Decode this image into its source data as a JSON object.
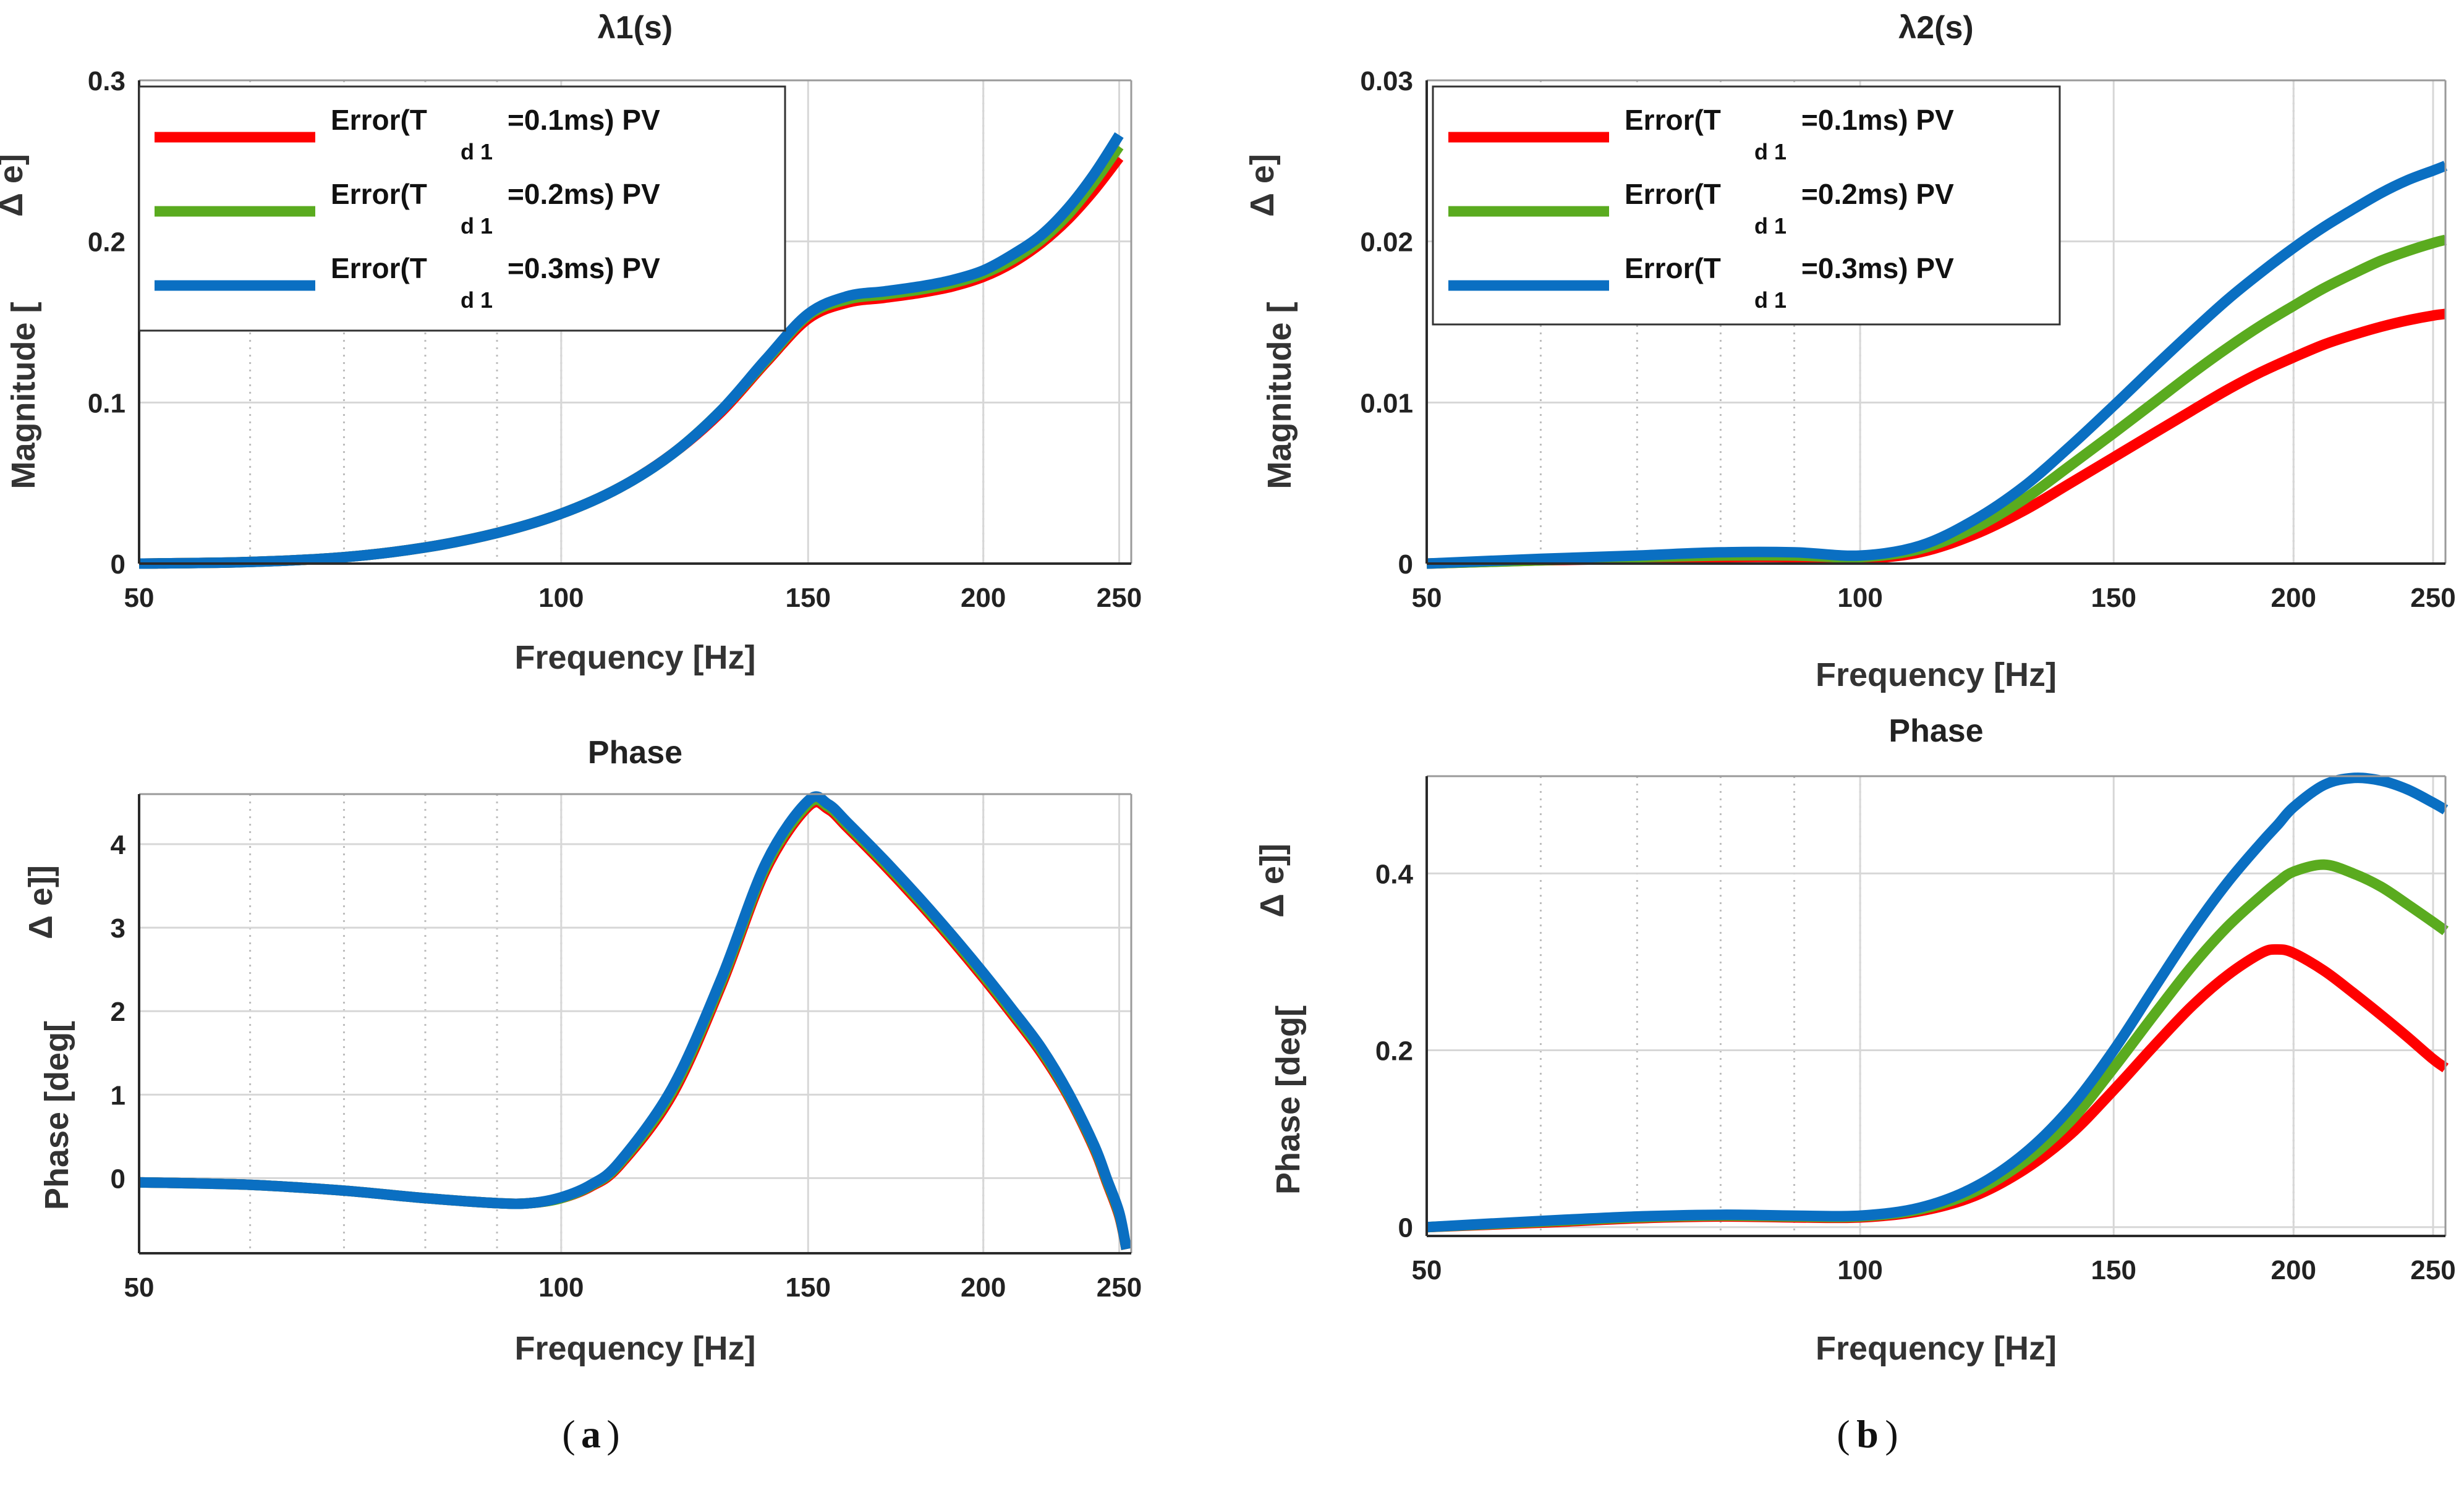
{
  "colors": {
    "red": "#ff0000",
    "green": "#5aab1f",
    "blue": "#0a6fc2",
    "grid": "#d7d7d7",
    "axis": "#2a2a2a"
  },
  "legend": [
    {
      "prefix": "Error(T",
      "sub": "d 1",
      "suffix": "=0.1ms) PV",
      "color": "#ff0000"
    },
    {
      "prefix": "Error(T",
      "sub": "d 1",
      "suffix": "=0.2ms) PV",
      "color": "#5aab1f"
    },
    {
      "prefix": "Error(T",
      "sub": "d 1",
      "suffix": "=0.3ms) PV",
      "color": "#0a6fc2"
    }
  ],
  "captions": {
    "a": "a",
    "b": "b"
  },
  "chart_data": [
    {
      "id": "a-mag",
      "type": "line",
      "title": "λ1(s)",
      "xlabel": "Frequency [Hz]",
      "ylabel_main": "Magnitude [",
      "ylabel_sub": "Δ  e]",
      "xscale": "log",
      "xlim": [
        50,
        255
      ],
      "ylim": [
        0,
        0.3
      ],
      "legend": "top-left",
      "grid": true,
      "xticks": [
        50,
        100,
        150,
        200,
        250
      ],
      "yticks": [
        0,
        0.1,
        0.2,
        0.3
      ],
      "yticklabels": [
        "0",
        "0.1",
        "0.2",
        "0.3"
      ],
      "x": [
        50,
        60,
        70,
        80,
        90,
        100,
        110,
        120,
        130,
        140,
        150,
        160,
        170,
        180,
        190,
        200,
        210,
        220,
        230,
        240,
        250
      ],
      "series": [
        {
          "color": "#ff0000",
          "values": [
            0,
            0.001,
            0.004,
            0.01,
            0.019,
            0.031,
            0.047,
            0.068,
            0.094,
            0.125,
            0.152,
            0.162,
            0.165,
            0.168,
            0.172,
            0.178,
            0.187,
            0.199,
            0.214,
            0.232,
            0.252
          ]
        },
        {
          "color": "#5aab1f",
          "values": [
            0,
            0.001,
            0.004,
            0.01,
            0.019,
            0.031,
            0.047,
            0.068,
            0.095,
            0.126,
            0.154,
            0.164,
            0.167,
            0.17,
            0.174,
            0.18,
            0.189,
            0.201,
            0.217,
            0.237,
            0.259
          ]
        },
        {
          "color": "#0a6fc2",
          "values": [
            0,
            0.001,
            0.004,
            0.01,
            0.019,
            0.031,
            0.047,
            0.068,
            0.095,
            0.127,
            0.155,
            0.166,
            0.169,
            0.172,
            0.176,
            0.182,
            0.192,
            0.204,
            0.221,
            0.242,
            0.266
          ]
        }
      ]
    },
    {
      "id": "a-phase",
      "type": "line",
      "title": "Phase",
      "xlabel": "Frequency [Hz]",
      "ylabel_main": "Phase [deg[",
      "ylabel_sub": "Δ  e]]",
      "xscale": "log",
      "xlim": [
        50,
        255
      ],
      "ylim": [
        -0.9,
        4.6
      ],
      "grid": true,
      "xticks": [
        50,
        100,
        150,
        200,
        250
      ],
      "yticks": [
        0,
        1,
        2,
        3,
        4
      ],
      "yticklabels": [
        "0",
        "1",
        "2",
        "3",
        "4"
      ],
      "x": [
        50,
        60,
        70,
        80,
        90,
        95,
        100,
        105,
        110,
        120,
        130,
        140,
        150,
        155,
        160,
        170,
        180,
        190,
        200,
        210,
        220,
        230,
        240,
        245,
        250,
        253
      ],
      "series": [
        {
          "color": "#ff0000",
          "values": [
            -0.05,
            -0.08,
            -0.15,
            -0.24,
            -0.3,
            -0.3,
            -0.24,
            -0.1,
            0.15,
            1.0,
            2.3,
            3.7,
            4.45,
            4.42,
            4.2,
            3.75,
            3.3,
            2.85,
            2.4,
            1.95,
            1.5,
            0.98,
            0.35,
            -0.05,
            -0.45,
            -0.85
          ]
        },
        {
          "color": "#5aab1f",
          "values": [
            -0.05,
            -0.08,
            -0.15,
            -0.24,
            -0.3,
            -0.3,
            -0.24,
            -0.09,
            0.17,
            1.04,
            2.34,
            3.74,
            4.48,
            4.45,
            4.23,
            3.78,
            3.33,
            2.88,
            2.43,
            1.98,
            1.53,
            1.0,
            0.37,
            -0.03,
            -0.43,
            -0.85
          ]
        },
        {
          "color": "#0a6fc2",
          "values": [
            -0.05,
            -0.08,
            -0.15,
            -0.24,
            -0.3,
            -0.3,
            -0.23,
            -0.08,
            0.19,
            1.08,
            2.38,
            3.78,
            4.52,
            4.48,
            4.26,
            3.81,
            3.36,
            2.91,
            2.46,
            2.01,
            1.56,
            1.02,
            0.39,
            -0.01,
            -0.41,
            -0.85
          ]
        }
      ]
    },
    {
      "id": "b-mag",
      "type": "line",
      "title": "λ2(s)",
      "xlabel": "Frequency [Hz]",
      "ylabel_main": "Magnitude [",
      "ylabel_sub": "Δ  e]",
      "xscale": "log",
      "xlim": [
        50,
        255
      ],
      "ylim": [
        0,
        0.03
      ],
      "legend": "top-left",
      "grid": true,
      "xticks": [
        50,
        100,
        150,
        200,
        250
      ],
      "yticks": [
        0,
        0.01,
        0.02,
        0.03
      ],
      "yticklabels": [
        "0",
        "0.01",
        "0.02",
        "0.03"
      ],
      "x": [
        50,
        60,
        70,
        80,
        90,
        100,
        110,
        120,
        130,
        140,
        150,
        160,
        170,
        180,
        190,
        200,
        210,
        220,
        230,
        240,
        250,
        255
      ],
      "series": [
        {
          "color": "#ff0000",
          "values": [
            0,
            0.0002,
            0.0003,
            0.0004,
            0.0004,
            0.0003,
            0.0007,
            0.0018,
            0.0033,
            0.005,
            0.0066,
            0.0081,
            0.0095,
            0.0108,
            0.0119,
            0.0128,
            0.0136,
            0.0142,
            0.0147,
            0.0151,
            0.0154,
            0.0155
          ]
        },
        {
          "color": "#5aab1f",
          "values": [
            0,
            0.0002,
            0.0004,
            0.0005,
            0.0005,
            0.0004,
            0.0009,
            0.0022,
            0.004,
            0.0061,
            0.0081,
            0.01,
            0.0118,
            0.0134,
            0.0148,
            0.016,
            0.0171,
            0.018,
            0.0188,
            0.0194,
            0.0199,
            0.0201
          ]
        },
        {
          "color": "#0a6fc2",
          "values": [
            0,
            0.0003,
            0.0005,
            0.0007,
            0.0007,
            0.0005,
            0.0011,
            0.0027,
            0.0048,
            0.0073,
            0.0098,
            0.0122,
            0.0144,
            0.0164,
            0.0181,
            0.0196,
            0.0209,
            0.022,
            0.023,
            0.0238,
            0.0244,
            0.0247
          ]
        }
      ]
    },
    {
      "id": "b-phase",
      "type": "line",
      "title": "Phase",
      "xlabel": "Frequency [Hz]",
      "ylabel_main": "Phase [deg[",
      "ylabel_sub": "Δ  e]]",
      "xscale": "log",
      "xlim": [
        50,
        255
      ],
      "ylim": [
        -0.01,
        0.51
      ],
      "grid": true,
      "xticks": [
        50,
        100,
        150,
        200,
        250
      ],
      "yticks": [
        0,
        0.2,
        0.4
      ],
      "yticklabels": [
        "0",
        "0.2",
        "0.4"
      ],
      "x": [
        50,
        60,
        70,
        80,
        90,
        100,
        110,
        120,
        130,
        140,
        150,
        160,
        170,
        180,
        190,
        195,
        200,
        210,
        220,
        230,
        240,
        250,
        255
      ],
      "series": [
        {
          "color": "#ff0000",
          "values": [
            0,
            0.005,
            0.01,
            0.012,
            0.011,
            0.011,
            0.018,
            0.035,
            0.065,
            0.105,
            0.155,
            0.205,
            0.25,
            0.285,
            0.31,
            0.314,
            0.31,
            0.29,
            0.265,
            0.24,
            0.215,
            0.19,
            0.18
          ]
        },
        {
          "color": "#5aab1f",
          "values": [
            0,
            0.006,
            0.011,
            0.013,
            0.012,
            0.012,
            0.02,
            0.04,
            0.074,
            0.12,
            0.18,
            0.24,
            0.295,
            0.34,
            0.375,
            0.39,
            0.402,
            0.41,
            0.4,
            0.385,
            0.365,
            0.345,
            0.335
          ]
        },
        {
          "color": "#0a6fc2",
          "values": [
            0,
            0.007,
            0.012,
            0.014,
            0.013,
            0.013,
            0.022,
            0.045,
            0.083,
            0.135,
            0.2,
            0.27,
            0.335,
            0.39,
            0.435,
            0.455,
            0.475,
            0.5,
            0.508,
            0.505,
            0.495,
            0.48,
            0.472
          ]
        }
      ]
    }
  ]
}
